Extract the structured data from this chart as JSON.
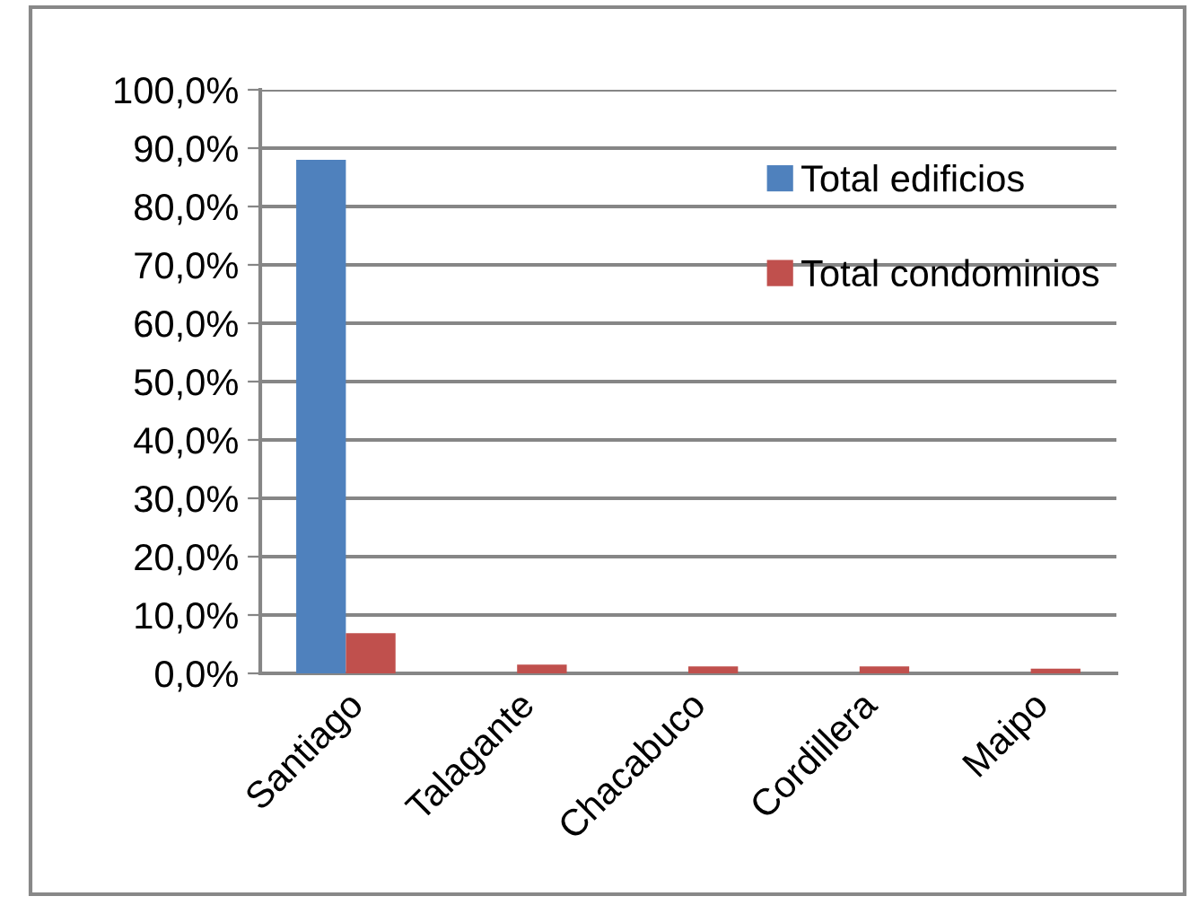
{
  "chart_data": {
    "type": "bar",
    "categories": [
      "Santiago",
      "Talagante",
      "Chacabuco",
      "Cordillera",
      "Maipo"
    ],
    "series": [
      {
        "name": "Total edificios",
        "color": "#4f81bd",
        "values": [
          88.0,
          0,
          0,
          0,
          0
        ]
      },
      {
        "name": "Total condominios",
        "color": "#c0504d",
        "values": [
          6.9,
          1.5,
          1.2,
          1.2,
          0.8
        ]
      }
    ],
    "ylim": [
      0,
      100
    ],
    "yticks": [
      {
        "value": 0,
        "label": "0,0%"
      },
      {
        "value": 10,
        "label": "10,0%"
      },
      {
        "value": 20,
        "label": "20,0%"
      },
      {
        "value": 30,
        "label": "30,0%"
      },
      {
        "value": 40,
        "label": "40,0%"
      },
      {
        "value": 50,
        "label": "50,0%"
      },
      {
        "value": 60,
        "label": "60,0%"
      },
      {
        "value": 70,
        "label": "70,0%"
      },
      {
        "value": 80,
        "label": "80,0%"
      },
      {
        "value": 90,
        "label": "90,0%"
      },
      {
        "value": 100,
        "label": "100,0%"
      }
    ],
    "grid": "y",
    "legend": "top right"
  }
}
